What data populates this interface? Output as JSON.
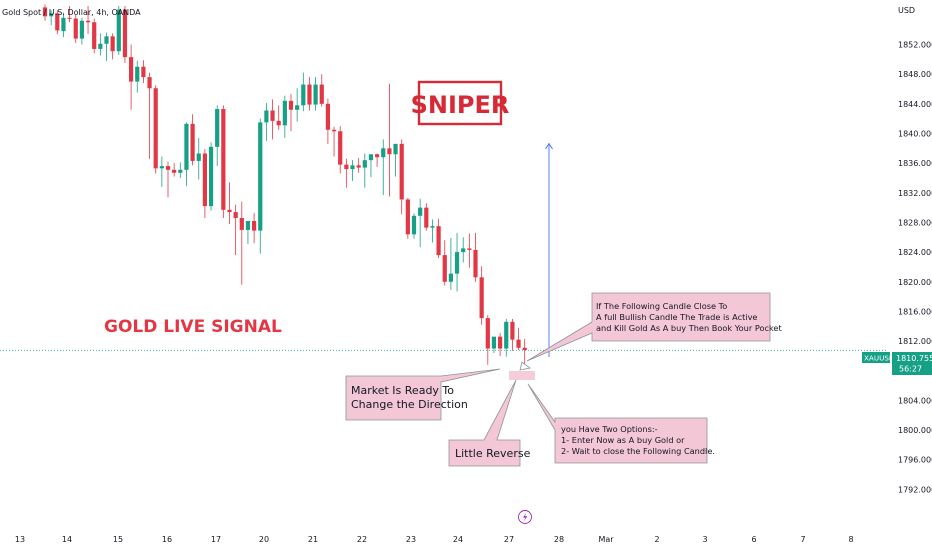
{
  "header": {
    "title": "Gold Spot / U.S. Dollar, 4h, OANDA"
  },
  "y_axis": {
    "currency": "USD"
  },
  "price_tag": {
    "symbol": "XAUUSD",
    "price": "1810.755",
    "countdown": "56:27"
  },
  "annotations": {
    "sniper": "SNIPER",
    "gold_live": "GOLD LIVE SIGNAL",
    "market_ready": [
      "Market Is Ready To",
      "Change the Direction"
    ],
    "little_reverse": "Little Reverse",
    "following_candle": [
      "If The Following Candle Close To",
      "A full Bullish Candle The Trade is Active",
      "and Kill Gold As A buy Then Book Your Pocket"
    ],
    "options": [
      "you Have Two Options:-",
      "1- Enter Now as A buy Gold or",
      "2- Wait to close the Following Candle."
    ]
  },
  "colors": {
    "bull": "#16a085",
    "bear": "#e23744",
    "accent": "#2962ff",
    "pink": "#f4c7d6"
  },
  "chart_data": {
    "type": "candlestick",
    "title": "Gold Spot / U.S. Dollar, 4h, OANDA",
    "ylabel": "USD",
    "ylim": [
      1789.5,
      1857.5
    ],
    "y_ticks": [
      1852,
      1848,
      1844,
      1840,
      1836,
      1832,
      1828,
      1824,
      1820,
      1816,
      1812,
      1808,
      1804,
      1800,
      1796,
      1792
    ],
    "y_tick_labels": [
      "1852.000",
      "1848.000",
      "1844.000",
      "1840.000",
      "1836.000",
      "1832.000",
      "1828.000",
      "1824.000",
      "1820.000",
      "1816.000",
      "1812.000",
      "1808.000",
      "1804.000",
      "1800.000",
      "1796.000",
      "1792.000"
    ],
    "x_ticks": [
      "13",
      "14",
      "15",
      "16",
      "17",
      "20",
      "21",
      "22",
      "23",
      "24",
      "27",
      "28",
      "Mar",
      "2",
      "3",
      "6",
      "7",
      "8"
    ],
    "current_price": 1810.755,
    "ohlc": [
      [
        1857.0,
        1857.4,
        1855.2,
        1855.8
      ],
      [
        1855.8,
        1856.6,
        1854.6,
        1856.2
      ],
      [
        1856.2,
        1856.6,
        1853.4,
        1853.9
      ],
      [
        1853.8,
        1856.3,
        1853.0,
        1855.6
      ],
      [
        1855.6,
        1857.2,
        1855.0,
        1855.5
      ],
      [
        1855.5,
        1856.0,
        1852.2,
        1852.8
      ],
      [
        1852.8,
        1855.6,
        1852.0,
        1855.2
      ],
      [
        1855.2,
        1857.2,
        1853.4,
        1855.0
      ],
      [
        1855.0,
        1855.5,
        1850.8,
        1851.4
      ],
      [
        1851.4,
        1853.5,
        1850.5,
        1852.1
      ],
      [
        1852.1,
        1853.6,
        1849.8,
        1853.1
      ],
      [
        1853.1,
        1853.5,
        1850.0,
        1851.1
      ],
      [
        1851.1,
        1857.2,
        1850.6,
        1856.7
      ],
      [
        1856.7,
        1857.2,
        1849.5,
        1850.3
      ],
      [
        1850.3,
        1852.0,
        1843.2,
        1847.0
      ],
      [
        1847.0,
        1849.8,
        1845.5,
        1849.0
      ],
      [
        1849.0,
        1849.9,
        1846.8,
        1847.6
      ],
      [
        1847.6,
        1848.2,
        1836.6,
        1846.1
      ],
      [
        1846.1,
        1846.5,
        1834.6,
        1835.3
      ],
      [
        1835.3,
        1836.9,
        1832.8,
        1835.6
      ],
      [
        1835.6,
        1836.2,
        1831.4,
        1835.1
      ],
      [
        1835.1,
        1836.0,
        1834.2,
        1834.7
      ],
      [
        1834.7,
        1836.1,
        1834.0,
        1835.1
      ],
      [
        1835.1,
        1841.5,
        1832.9,
        1841.3
      ],
      [
        1841.3,
        1842.6,
        1835.7,
        1836.3
      ],
      [
        1836.3,
        1839.4,
        1833.8,
        1837.3
      ],
      [
        1837.3,
        1837.9,
        1828.6,
        1830.2
      ],
      [
        1830.2,
        1838.8,
        1829.6,
        1838.2
      ],
      [
        1838.2,
        1843.8,
        1835.6,
        1843.3
      ],
      [
        1843.3,
        1843.8,
        1828.6,
        1829.7
      ],
      [
        1829.7,
        1833.4,
        1827.8,
        1829.4
      ],
      [
        1829.4,
        1830.4,
        1823.6,
        1828.6
      ],
      [
        1828.6,
        1830.8,
        1819.6,
        1827.0
      ],
      [
        1827.0,
        1828.1,
        1825.1,
        1828.2
      ],
      [
        1828.2,
        1829.3,
        1825.2,
        1826.9
      ],
      [
        1826.9,
        1842.0,
        1823.8,
        1841.5
      ],
      [
        1841.5,
        1844.1,
        1839.0,
        1843.1
      ],
      [
        1843.1,
        1844.6,
        1839.2,
        1841.7
      ],
      [
        1841.7,
        1843.8,
        1840.5,
        1841.1
      ],
      [
        1841.1,
        1845.1,
        1839.4,
        1844.4
      ],
      [
        1844.4,
        1845.3,
        1840.3,
        1843.2
      ],
      [
        1843.2,
        1846.1,
        1841.6,
        1843.8
      ],
      [
        1843.8,
        1848.2,
        1843.0,
        1846.6
      ],
      [
        1846.6,
        1847.6,
        1843.1,
        1843.9
      ],
      [
        1843.9,
        1847.6,
        1843.1,
        1846.6
      ],
      [
        1846.6,
        1848.0,
        1843.6,
        1844.0
      ],
      [
        1844.0,
        1844.7,
        1838.6,
        1840.5
      ],
      [
        1840.5,
        1840.9,
        1836.9,
        1840.3
      ],
      [
        1840.3,
        1841.0,
        1834.6,
        1835.8
      ],
      [
        1835.8,
        1836.6,
        1832.7,
        1835.2
      ],
      [
        1835.2,
        1836.4,
        1833.6,
        1835.7
      ],
      [
        1835.7,
        1836.7,
        1834.7,
        1835.4
      ],
      [
        1835.4,
        1837.3,
        1832.7,
        1836.4
      ],
      [
        1836.4,
        1837.0,
        1834.1,
        1837.2
      ],
      [
        1837.2,
        1837.3,
        1835.5,
        1836.8
      ],
      [
        1836.8,
        1839.2,
        1831.7,
        1838.0
      ],
      [
        1838.0,
        1846.7,
        1831.5,
        1837.2
      ],
      [
        1837.2,
        1838.6,
        1834.2,
        1838.6
      ],
      [
        1838.6,
        1839.2,
        1829.1,
        1831.1
      ],
      [
        1831.1,
        1831.3,
        1825.8,
        1826.4
      ],
      [
        1826.4,
        1829.2,
        1825.8,
        1828.9
      ],
      [
        1828.9,
        1831.2,
        1824.7,
        1830.0
      ],
      [
        1830.0,
        1830.6,
        1826.9,
        1827.3
      ],
      [
        1827.3,
        1828.4,
        1825.3,
        1827.5
      ],
      [
        1827.5,
        1828.5,
        1823.2,
        1823.6
      ],
      [
        1823.6,
        1825.6,
        1819.5,
        1820.0
      ],
      [
        1820.0,
        1825.9,
        1818.9,
        1821.1
      ],
      [
        1821.1,
        1826.6,
        1818.7,
        1824.0
      ],
      [
        1824.0,
        1826.0,
        1822.6,
        1824.5
      ],
      [
        1824.5,
        1826.5,
        1821.9,
        1824.3
      ],
      [
        1824.3,
        1826.6,
        1820.0,
        1820.6
      ],
      [
        1820.6,
        1822.1,
        1814.2,
        1815.1
      ],
      [
        1815.1,
        1815.5,
        1808.8,
        1811.0
      ],
      [
        1811.0,
        1812.3,
        1810.4,
        1812.6
      ],
      [
        1812.6,
        1813.1,
        1810.0,
        1811.0
      ],
      [
        1811.0,
        1815.0,
        1809.9,
        1814.6
      ],
      [
        1814.6,
        1815.0,
        1810.7,
        1812.2
      ],
      [
        1812.2,
        1813.8,
        1810.8,
        1811.1
      ],
      [
        1811.1,
        1812.3,
        1808.4,
        1810.8
      ]
    ]
  }
}
